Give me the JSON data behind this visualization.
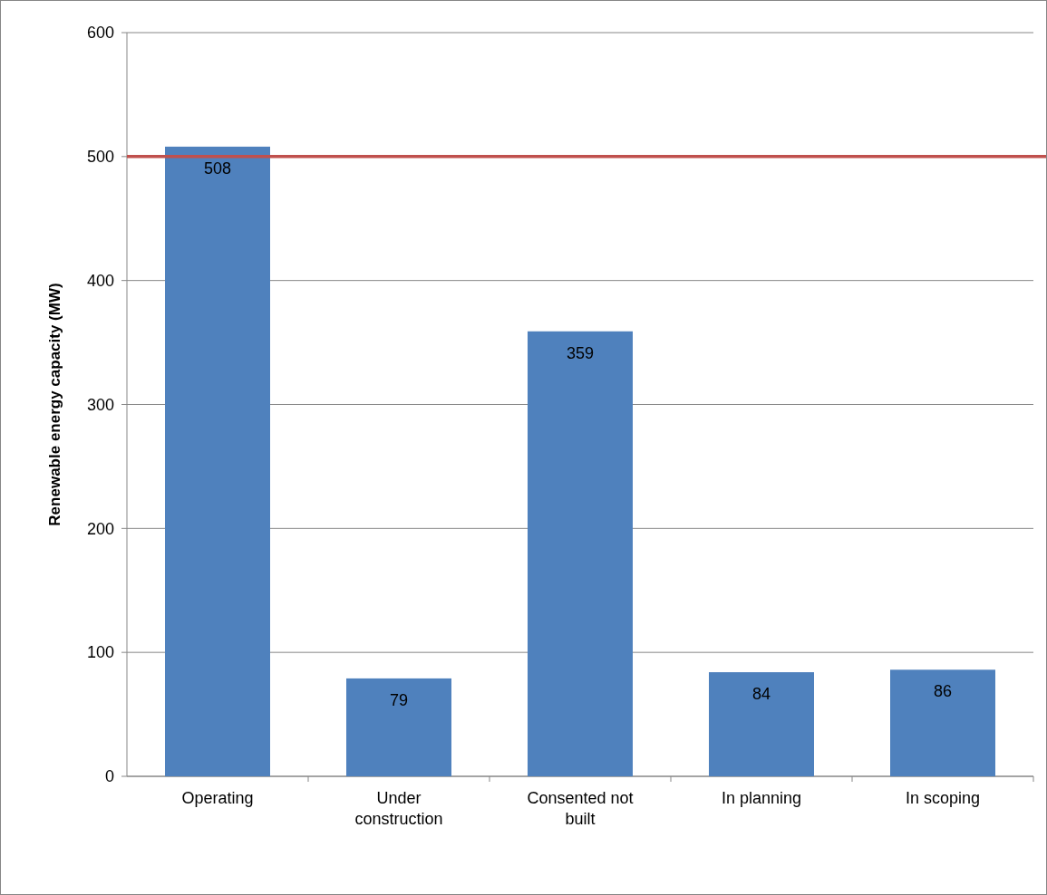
{
  "chart_data": {
    "type": "bar",
    "ylabel": "Renewable energy capacity (MW)",
    "categories": [
      "Operating",
      "Under construction",
      "Consented not built",
      "In planning",
      "In scoping"
    ],
    "values": [
      508,
      79,
      359,
      84,
      86
    ],
    "color": "#4f81bd",
    "ylim": [
      0,
      600
    ],
    "yticks": [
      0,
      100,
      200,
      300,
      400,
      500,
      600
    ],
    "grid": "y",
    "data_labels": true,
    "ref_lines": [
      {
        "axis": "y",
        "value": 500,
        "color": "#c0504d"
      }
    ]
  }
}
